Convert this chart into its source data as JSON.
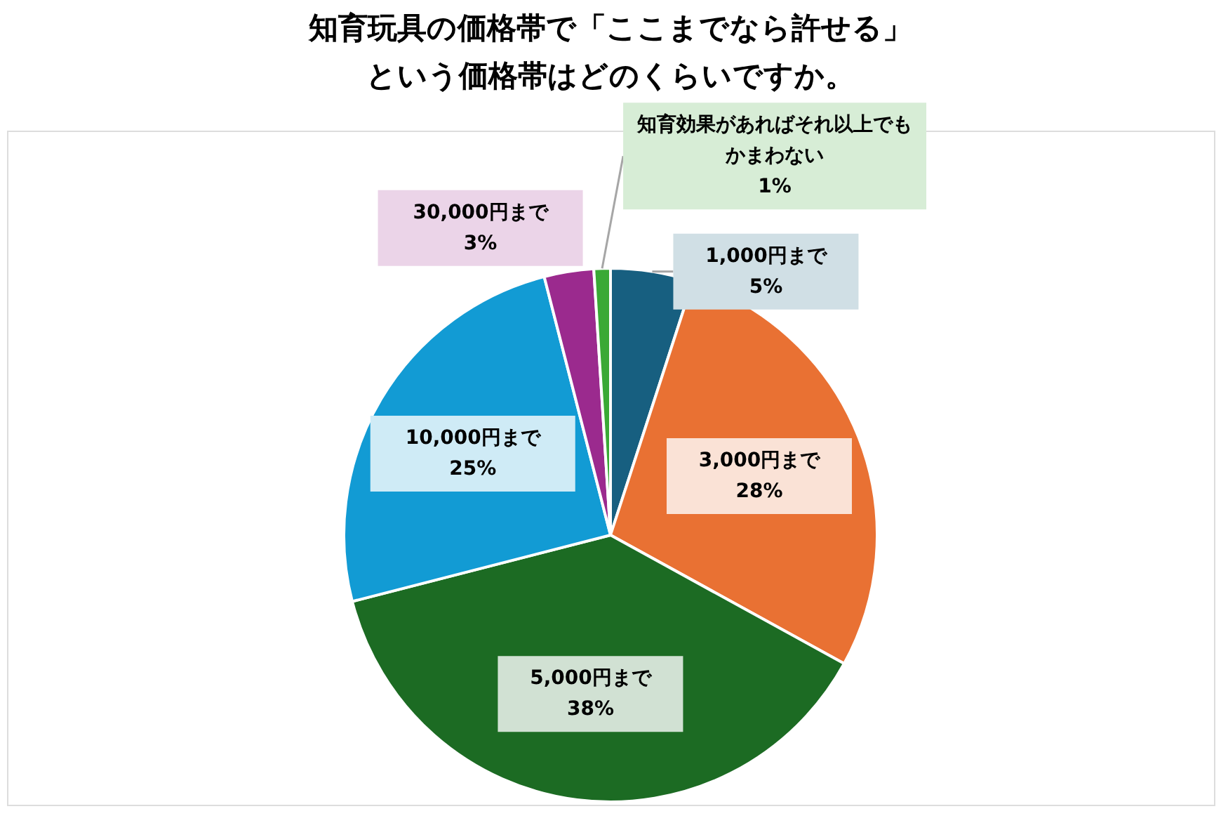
{
  "chart_data": {
    "type": "pie",
    "title": [
      "知育玩具の価格帯で「ここまでなら許せる」",
      "という価格帯はどのくらいですか。"
    ],
    "categories": [
      "1,000円まで",
      "3,000円まで",
      "5,000円まで",
      "10,000円まで",
      "30,000円まで",
      "知育効果があればそれ以上でもかまわない"
    ],
    "values": [
      5,
      28,
      38,
      25,
      3,
      1
    ],
    "value_labels": [
      "5%",
      "28%",
      "38%",
      "25%",
      "3%",
      "1%"
    ],
    "colors": [
      "#175f80",
      "#e97133",
      "#1c6b23",
      "#129bd4",
      "#9b2a8e",
      "#3aa935"
    ],
    "legend": false
  }
}
